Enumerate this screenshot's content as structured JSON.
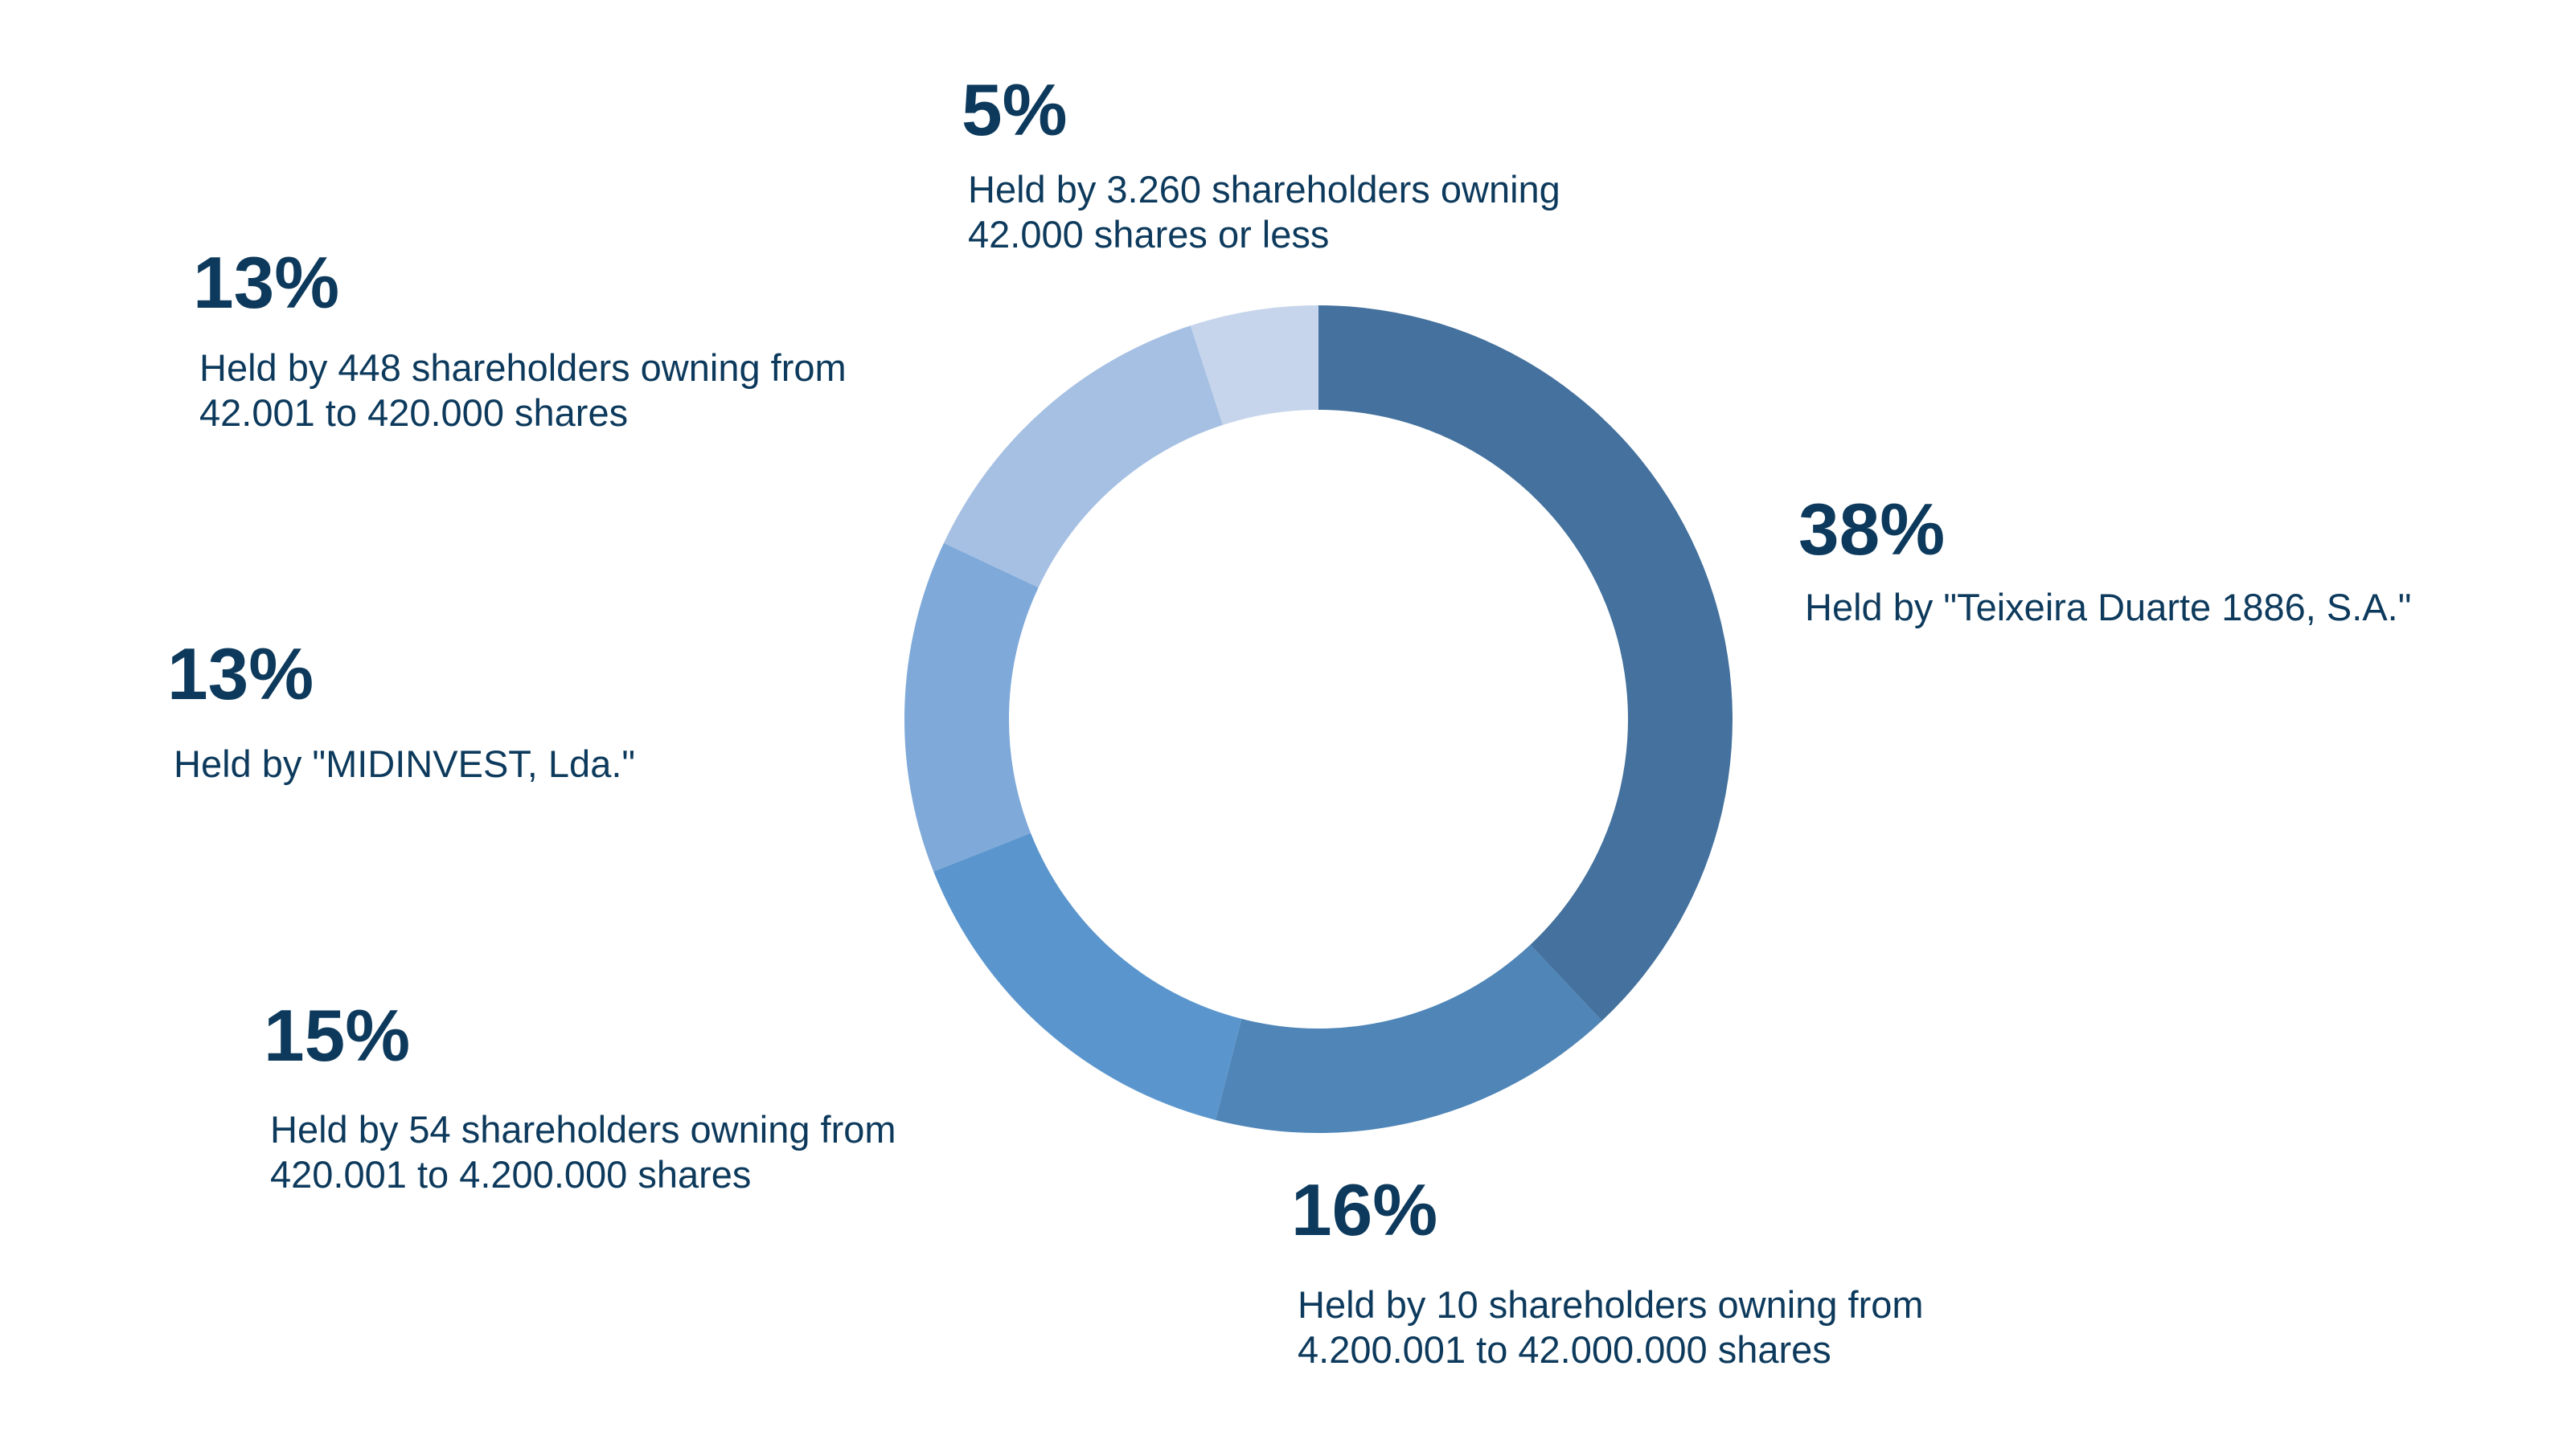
{
  "chart_data": {
    "type": "pie",
    "title": "",
    "slices": [
      {
        "value": 38,
        "percent_label": "38%",
        "description": [
          "Held by \"Teixeira Duarte 1886, S.A.\""
        ],
        "color": "#44719d"
      },
      {
        "value": 16,
        "percent_label": "16%",
        "description": [
          "Held by 10 shareholders owning from",
          "4.200.001 to 42.000.000 shares"
        ],
        "color": "#4f85b7"
      },
      {
        "value": 15,
        "percent_label": "15%",
        "description": [
          "Held by 54 shareholders owning from",
          "420.001 to 4.200.000 shares"
        ],
        "color": "#5a96cd"
      },
      {
        "value": 13,
        "percent_label": "13%",
        "description": [
          "Held by \"MIDINVEST, Lda.\""
        ],
        "color": "#7ea9d9"
      },
      {
        "value": 13,
        "percent_label": "13%",
        "description": [
          "Held by 448 shareholders owning from",
          "42.001 to 420.000 shares"
        ],
        "color": "#a6c0e3"
      },
      {
        "value": 5,
        "percent_label": "5%",
        "description": [
          "Held by 3.260 shareholders owning",
          "42.000 shares or less"
        ],
        "color": "#c6d5eb"
      }
    ]
  }
}
